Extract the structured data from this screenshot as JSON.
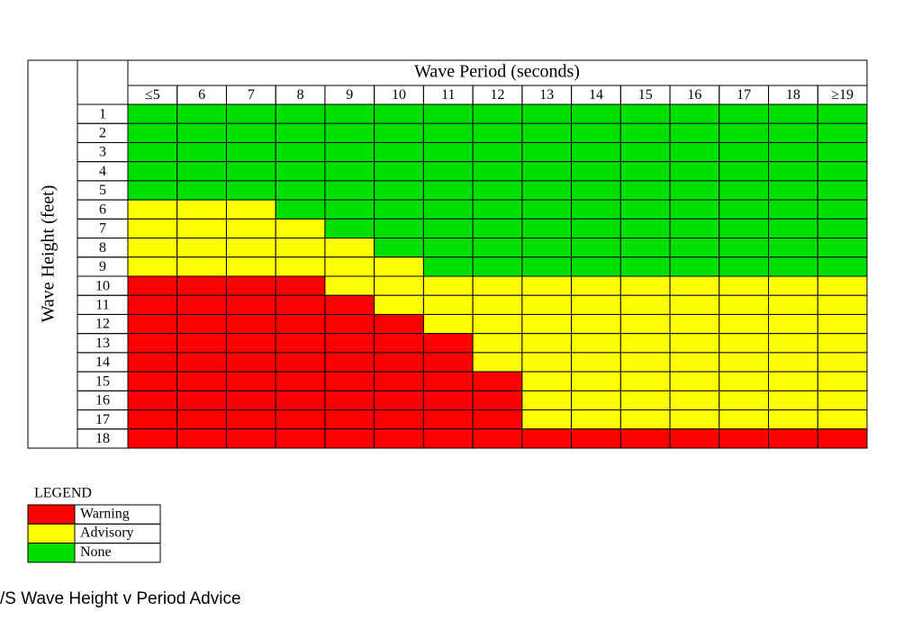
{
  "table": {
    "column_header": "Wave Period (seconds)",
    "row_header": "Wave Height (feet)",
    "columns": [
      "≤5",
      "6",
      "7",
      "8",
      "9",
      "10",
      "11",
      "12",
      "13",
      "14",
      "15",
      "16",
      "17",
      "18",
      "≥19"
    ],
    "rows": [
      1,
      2,
      3,
      4,
      5,
      6,
      7,
      8,
      9,
      10,
      11,
      12,
      13,
      14,
      15,
      16,
      17,
      18
    ],
    "cells": [
      [
        2,
        2,
        2,
        2,
        2,
        2,
        2,
        2,
        2,
        2,
        2,
        2,
        2,
        2,
        2
      ],
      [
        2,
        2,
        2,
        2,
        2,
        2,
        2,
        2,
        2,
        2,
        2,
        2,
        2,
        2,
        2
      ],
      [
        2,
        2,
        2,
        2,
        2,
        2,
        2,
        2,
        2,
        2,
        2,
        2,
        2,
        2,
        2
      ],
      [
        2,
        2,
        2,
        2,
        2,
        2,
        2,
        2,
        2,
        2,
        2,
        2,
        2,
        2,
        2
      ],
      [
        2,
        2,
        2,
        2,
        2,
        2,
        2,
        2,
        2,
        2,
        2,
        2,
        2,
        2,
        2
      ],
      [
        1,
        1,
        1,
        2,
        2,
        2,
        2,
        2,
        2,
        2,
        2,
        2,
        2,
        2,
        2
      ],
      [
        1,
        1,
        1,
        1,
        2,
        2,
        2,
        2,
        2,
        2,
        2,
        2,
        2,
        2,
        2
      ],
      [
        1,
        1,
        1,
        1,
        1,
        2,
        2,
        2,
        2,
        2,
        2,
        2,
        2,
        2,
        2
      ],
      [
        1,
        1,
        1,
        1,
        1,
        1,
        2,
        2,
        2,
        2,
        2,
        2,
        2,
        2,
        2
      ],
      [
        0,
        0,
        0,
        0,
        1,
        1,
        1,
        1,
        1,
        1,
        1,
        1,
        1,
        1,
        1
      ],
      [
        0,
        0,
        0,
        0,
        0,
        1,
        1,
        1,
        1,
        1,
        1,
        1,
        1,
        1,
        1
      ],
      [
        0,
        0,
        0,
        0,
        0,
        0,
        1,
        1,
        1,
        1,
        1,
        1,
        1,
        1,
        1
      ],
      [
        0,
        0,
        0,
        0,
        0,
        0,
        0,
        1,
        1,
        1,
        1,
        1,
        1,
        1,
        1
      ],
      [
        0,
        0,
        0,
        0,
        0,
        0,
        0,
        1,
        1,
        1,
        1,
        1,
        1,
        1,
        1
      ],
      [
        0,
        0,
        0,
        0,
        0,
        0,
        0,
        0,
        1,
        1,
        1,
        1,
        1,
        1,
        1
      ],
      [
        0,
        0,
        0,
        0,
        0,
        0,
        0,
        0,
        1,
        1,
        1,
        1,
        1,
        1,
        1
      ],
      [
        0,
        0,
        0,
        0,
        0,
        0,
        0,
        0,
        1,
        1,
        1,
        1,
        1,
        1,
        1
      ],
      [
        0,
        0,
        0,
        0,
        0,
        0,
        0,
        0,
        0,
        0,
        0,
        0,
        0,
        0,
        0
      ]
    ]
  },
  "legend": {
    "title": "LEGEND",
    "items": [
      {
        "label": "Warning",
        "color": "#ff0000"
      },
      {
        "label": "Advisory",
        "color": "#ffff00"
      },
      {
        "label": "None",
        "color": "#00e000"
      }
    ]
  },
  "caption": "/S Wave Height v Period Advice"
}
